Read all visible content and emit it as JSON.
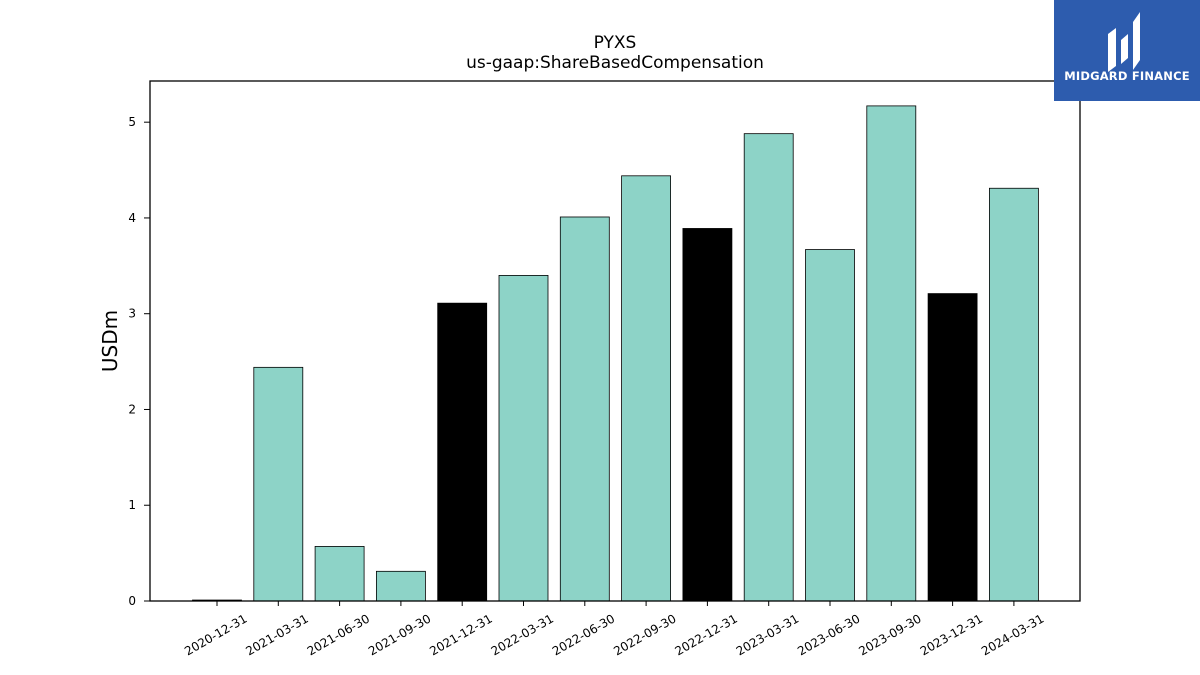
{
  "chart_data": {
    "type": "bar",
    "title": "PYXS",
    "subtitle": "us-gaap:ShareBasedCompensation",
    "xlabel": "",
    "ylabel": "USDm",
    "ylim": [
      0,
      5.43
    ],
    "yticks": [
      0,
      1,
      2,
      3,
      4,
      5
    ],
    "grid": false,
    "categories": [
      "2020-12-31",
      "2021-03-31",
      "2021-06-30",
      "2021-09-30",
      "2021-12-31",
      "2022-03-31",
      "2022-06-30",
      "2022-09-30",
      "2022-12-31",
      "2023-03-31",
      "2023-06-30",
      "2023-09-30",
      "2023-12-31",
      "2024-03-31"
    ],
    "values": [
      0.01,
      2.44,
      0.57,
      0.31,
      3.11,
      3.4,
      4.01,
      4.44,
      3.89,
      4.88,
      3.67,
      5.17,
      3.21,
      4.31
    ],
    "bar_colors": [
      "#000000",
      "#8dd3c7",
      "#8dd3c7",
      "#8dd3c7",
      "#000000",
      "#8dd3c7",
      "#8dd3c7",
      "#8dd3c7",
      "#000000",
      "#8dd3c7",
      "#8dd3c7",
      "#8dd3c7",
      "#000000",
      "#8dd3c7"
    ]
  },
  "logo": {
    "text": "MIDGARD FINANCE",
    "background": "#2d5cae"
  }
}
